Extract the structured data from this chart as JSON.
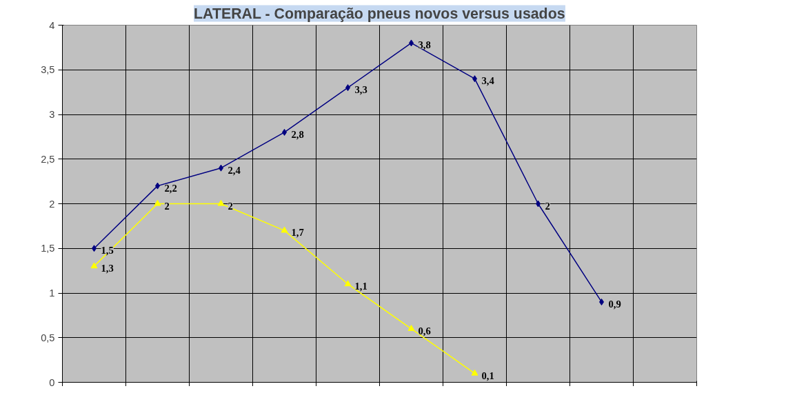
{
  "chart_data": {
    "type": "line",
    "title": "LATERAL - Comparação pneus novos versus usados",
    "categories": [
      null,
      null,
      null,
      null,
      null,
      null,
      null,
      null,
      null,
      null
    ],
    "series": [
      {
        "color": "#000080",
        "marker": "diamond",
        "values": [
          1.5,
          2.2,
          2.4,
          2.8,
          3.3,
          3.8,
          3.4,
          2,
          0.9,
          null
        ],
        "value_labels": [
          "1,5",
          "2,2",
          "2,4",
          "2,8",
          "3,3",
          "3,8",
          "3,4",
          "2",
          "0,9",
          null
        ]
      },
      {
        "color": "#ffff00",
        "marker": "triangle",
        "values": [
          1.3,
          2,
          2,
          1.7,
          1.1,
          0.6,
          0.1,
          null,
          null,
          null
        ],
        "value_labels": [
          "1,3",
          "2",
          "2",
          "1,7",
          "1,1",
          "0,6",
          "0,1",
          null,
          null,
          null
        ]
      }
    ],
    "ylim": [
      0,
      4
    ],
    "yticks": [
      0,
      {
        "value": 0.5,
        "label": "0,5"
      },
      1,
      {
        "value": 1.5,
        "label": "1,5"
      },
      2,
      {
        "value": 2.5,
        "label": "2,5"
      },
      3,
      {
        "value": 3.5,
        "label": "3,5"
      },
      4
    ],
    "grid": true,
    "line_style": "solid"
  }
}
